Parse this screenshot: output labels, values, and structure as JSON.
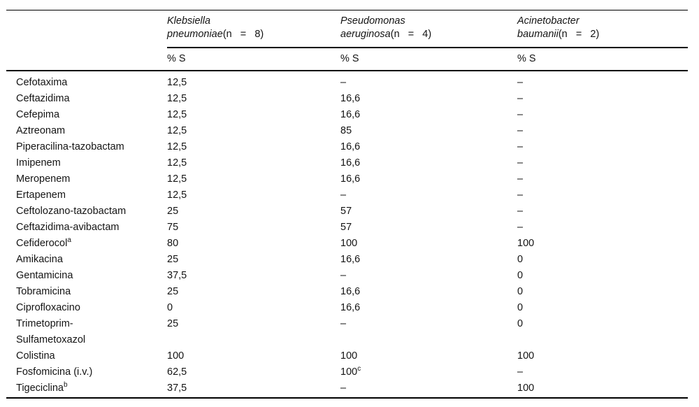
{
  "table": {
    "columns": [
      {
        "genus": "Klebsiella",
        "species": "pneumoniae",
        "n_label": "(n   =   8)",
        "subheader": "% S"
      },
      {
        "genus": "Pseudomonas",
        "species": "aeruginosa",
        "n_label": "(n   =   4)",
        "subheader": "% S"
      },
      {
        "genus": "Acinetobacter",
        "species": "baumanii",
        "n_label": "(n   =   2)",
        "subheader": "% S"
      }
    ],
    "rows": [
      {
        "label": "Cefotaxima",
        "label_sup": "",
        "values": [
          "12,5",
          "–",
          "–"
        ],
        "value_sups": [
          "",
          "",
          ""
        ]
      },
      {
        "label": "Ceftazidima",
        "label_sup": "",
        "values": [
          "12,5",
          "16,6",
          "–"
        ],
        "value_sups": [
          "",
          "",
          ""
        ]
      },
      {
        "label": "Cefepima",
        "label_sup": "",
        "values": [
          "12,5",
          "16,6",
          "–"
        ],
        "value_sups": [
          "",
          "",
          ""
        ]
      },
      {
        "label": "Aztreonam",
        "label_sup": "",
        "values": [
          "12,5",
          "85",
          "–"
        ],
        "value_sups": [
          "",
          "",
          ""
        ]
      },
      {
        "label": "Piperacilina-tazobactam",
        "label_sup": "",
        "values": [
          "12,5",
          "16,6",
          "–"
        ],
        "value_sups": [
          "",
          "",
          ""
        ]
      },
      {
        "label": "Imipenem",
        "label_sup": "",
        "values": [
          "12,5",
          "16,6",
          "–"
        ],
        "value_sups": [
          "",
          "",
          ""
        ]
      },
      {
        "label": "Meropenem",
        "label_sup": "",
        "values": [
          "12,5",
          "16,6",
          "–"
        ],
        "value_sups": [
          "",
          "",
          ""
        ]
      },
      {
        "label": "Ertapenem",
        "label_sup": "",
        "values": [
          "12,5",
          "–",
          "–"
        ],
        "value_sups": [
          "",
          "",
          ""
        ]
      },
      {
        "label": "Ceftolozano-tazobactam",
        "label_sup": "",
        "values": [
          "25",
          "57",
          "–"
        ],
        "value_sups": [
          "",
          "",
          ""
        ]
      },
      {
        "label": "Ceftazidima-avibactam",
        "label_sup": "",
        "values": [
          "75",
          "57",
          "–"
        ],
        "value_sups": [
          "",
          "",
          ""
        ]
      },
      {
        "label": "Cefiderocol",
        "label_sup": "a",
        "values": [
          "80",
          "100",
          "100"
        ],
        "value_sups": [
          "",
          "",
          ""
        ]
      },
      {
        "label": "Amikacina",
        "label_sup": "",
        "values": [
          "25",
          "16,6",
          "0"
        ],
        "value_sups": [
          "",
          "",
          ""
        ]
      },
      {
        "label": "Gentamicina",
        "label_sup": "",
        "values": [
          "37,5",
          "–",
          "0"
        ],
        "value_sups": [
          "",
          "",
          ""
        ]
      },
      {
        "label": "Tobramicina",
        "label_sup": "",
        "values": [
          "25",
          "16,6",
          "0"
        ],
        "value_sups": [
          "",
          "",
          ""
        ]
      },
      {
        "label": "Ciprofloxacino",
        "label_sup": "",
        "values": [
          "0",
          "16,6",
          "0"
        ],
        "value_sups": [
          "",
          "",
          ""
        ]
      },
      {
        "label": "Trimetoprim-\nSulfametoxazol",
        "label_sup": "",
        "values": [
          "25",
          "–",
          "0"
        ],
        "value_sups": [
          "",
          "",
          ""
        ]
      },
      {
        "label": "Colistina",
        "label_sup": "",
        "values": [
          "100",
          "100",
          "100"
        ],
        "value_sups": [
          "",
          "",
          ""
        ]
      },
      {
        "label": "Fosfomicina (i.v.)",
        "label_sup": "",
        "values": [
          "62,5",
          "100",
          "–"
        ],
        "value_sups": [
          "",
          "c",
          ""
        ]
      },
      {
        "label": "Tigeciclina",
        "label_sup": "b",
        "values": [
          "37,5",
          "–",
          "100"
        ],
        "value_sups": [
          "",
          "",
          ""
        ]
      }
    ]
  }
}
